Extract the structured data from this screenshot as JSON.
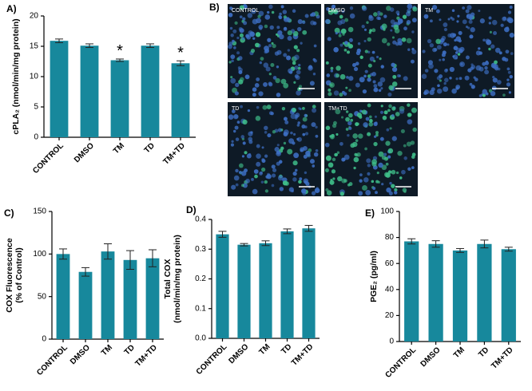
{
  "chart_data": [
    {
      "type": "bar",
      "panel_label": "A)",
      "ylabel": [
        "cPLA₂ (nmol/min/mg protein)"
      ],
      "color": "#17889c",
      "categories": [
        "CONTROL",
        "DMSO",
        "TM",
        "TD",
        "TM+TD"
      ],
      "values": [
        15.9,
        15.1,
        12.7,
        15.1,
        12.2
      ],
      "errors": [
        0.3,
        0.3,
        0.2,
        0.3,
        0.4
      ],
      "ylim": [
        0,
        20
      ],
      "yticks": [
        0,
        5,
        10,
        15,
        20
      ],
      "annotations": [
        {
          "category": "TM",
          "text": "*"
        },
        {
          "category": "TM+TD",
          "text": "*"
        }
      ]
    },
    {
      "type": "bar",
      "panel_label": "C)",
      "ylabel": [
        "COX Fluorescence",
        "(% of Control)"
      ],
      "color": "#17889c",
      "categories": [
        "CONTROL",
        "DMSO",
        "TM",
        "TD",
        "TM+TD"
      ],
      "values": [
        100,
        79,
        103,
        93,
        95
      ],
      "errors": [
        6,
        5,
        9,
        11,
        10
      ],
      "ylim": [
        0,
        150
      ],
      "yticks": [
        0,
        50,
        100,
        150
      ]
    },
    {
      "type": "bar",
      "panel_label": "D)",
      "ylabel": [
        "Total COX",
        "(nmol/min/mg protein)"
      ],
      "color": "#17889c",
      "categories": [
        "CONTROL",
        "DMSO",
        "TM",
        "TD",
        "TM+TD"
      ],
      "values": [
        0.35,
        0.315,
        0.32,
        0.36,
        0.37
      ],
      "errors": [
        0.01,
        0.004,
        0.008,
        0.008,
        0.01
      ],
      "ylim": [
        0,
        0.4
      ],
      "yticks": [
        {
          "value": 0,
          "label": "0.0"
        },
        0.1,
        0.2,
        0.3,
        0.4
      ]
    },
    {
      "type": "bar",
      "panel_label": "E)",
      "ylabel": [
        "PGE₂ (pg/ml)"
      ],
      "color": "#17889c",
      "categories": [
        "CONTROL",
        "DMSO",
        "TM",
        "TD",
        "TM+TD"
      ],
      "values": [
        77,
        75,
        70,
        75,
        71
      ],
      "errors": [
        2,
        2.5,
        1.5,
        3,
        1.5
      ],
      "ylim": [
        0,
        100
      ],
      "yticks": [
        0,
        20,
        40,
        60,
        80,
        100
      ]
    }
  ],
  "images": {
    "panel_label": "B)",
    "labels": [
      "CONTROL",
      "DMSO",
      "TM",
      "TD",
      "TM+TD"
    ]
  }
}
